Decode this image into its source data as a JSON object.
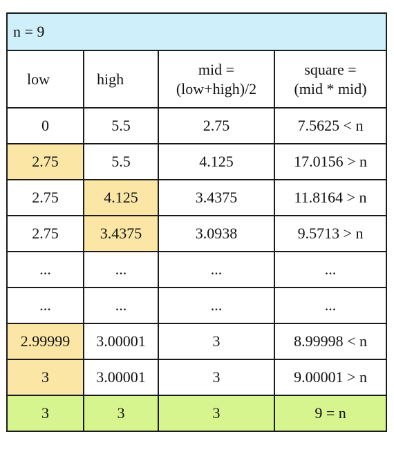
{
  "title": "n = 9",
  "columns": {
    "low": "low",
    "high": "high",
    "mid": [
      "mid =",
      "(low+high)/2"
    ],
    "square": [
      "square =",
      "(mid * mid)"
    ]
  },
  "rows": [
    {
      "low": "0",
      "high": "5.5",
      "mid": "2.75",
      "square": "7.5625 < n",
      "highlight": ""
    },
    {
      "low": "2.75",
      "high": "5.5",
      "mid": "4.125",
      "square": "17.0156 > n",
      "highlight": "low"
    },
    {
      "low": "2.75",
      "high": "4.125",
      "mid": "3.4375",
      "square": "11.8164 > n",
      "highlight": "high"
    },
    {
      "low": "2.75",
      "high": "3.4375",
      "mid": "3.0938",
      "square": "9.5713 > n",
      "highlight": "high"
    },
    {
      "low": "...",
      "high": "...",
      "mid": "...",
      "square": "...",
      "highlight": ""
    },
    {
      "low": "...",
      "high": "...",
      "mid": "...",
      "square": "...",
      "highlight": ""
    },
    {
      "low": "2.99999",
      "high": "3.00001",
      "mid": "3",
      "square": "8.99998 < n",
      "highlight": "low"
    },
    {
      "low": "3",
      "high": "3.00001",
      "mid": "3",
      "square": "9.00001 > n",
      "highlight": "low"
    }
  ],
  "final_row": {
    "low": "3",
    "high": "3",
    "mid": "3",
    "square": "9 = n"
  },
  "colors": {
    "title_bg": "#cfeffb",
    "highlight": "#fbe6a6",
    "final_bg": "#d6f58f"
  }
}
